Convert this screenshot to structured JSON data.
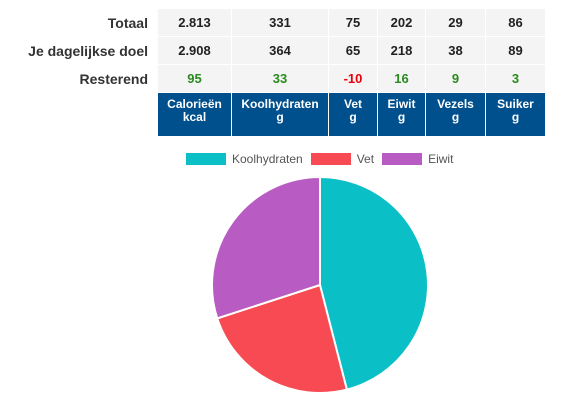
{
  "table": {
    "rows": [
      {
        "label": "Totaal",
        "values": [
          "2.813",
          "331",
          "75",
          "202",
          "29",
          "86"
        ]
      },
      {
        "label": "Je dagelijkse doel",
        "values": [
          "2.908",
          "364",
          "65",
          "218",
          "38",
          "89"
        ]
      },
      {
        "label": "Resterend",
        "values": [
          "95",
          "33",
          "-10",
          "16",
          "9",
          "3"
        ]
      }
    ],
    "columns": [
      {
        "name": "Calorieën",
        "unit": "kcal"
      },
      {
        "name": "Koolhydraten",
        "unit": "g"
      },
      {
        "name": "Vet",
        "unit": "g"
      },
      {
        "name": "Eiwit",
        "unit": "g"
      },
      {
        "name": "Vezels",
        "unit": "g"
      },
      {
        "name": "Suiker",
        "unit": "g"
      }
    ]
  },
  "colors": {
    "header_bg": "#00508e",
    "remaining_positive": "#2a8a1f",
    "remaining_negative": "#e8000b"
  },
  "chart_data": {
    "type": "pie",
    "legend_position": "top",
    "series": [
      {
        "name": "Koolhydraten",
        "value": 46,
        "color": "#0bbfc7"
      },
      {
        "name": "Vet",
        "value": 24,
        "color": "#f74a52"
      },
      {
        "name": "Eiwit",
        "value": 30,
        "color": "#b85bc2"
      }
    ]
  }
}
